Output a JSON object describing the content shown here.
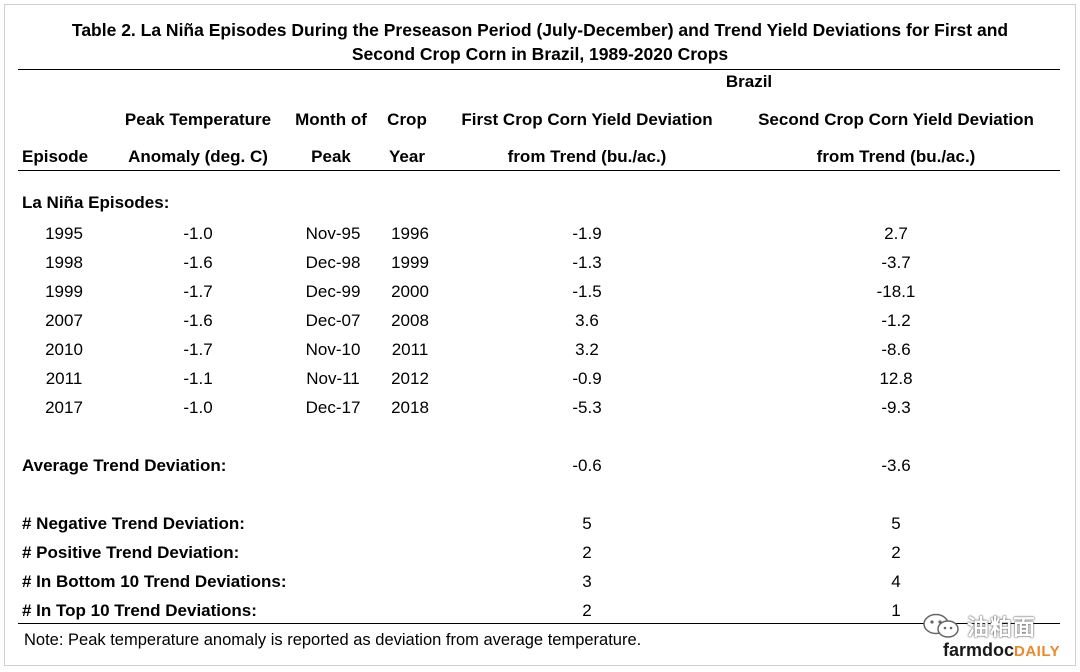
{
  "title": {
    "line1": "Table 2. La Niña Episodes During the Preseason Period (July-December) and Trend Yield Deviations for First and",
    "line2": "Second Crop Corn in Brazil, 1989-2020 Crops"
  },
  "header": {
    "group": "Brazil",
    "episode": "Episode",
    "peak_temp": [
      "Peak Temperature",
      "Anomaly (deg. C)"
    ],
    "month": [
      "Month of",
      "Peak"
    ],
    "crop_year": [
      "Crop",
      "Year"
    ],
    "first_crop": [
      "First Crop Corn Yield Deviation",
      "from Trend (bu./ac.)"
    ],
    "second_crop": [
      "Second Crop Corn Yield Deviation",
      "from Trend (bu./ac.)"
    ]
  },
  "section_label": "La Niña Episodes:",
  "rows": [
    {
      "episode": "1995",
      "anomaly": "-1.0",
      "month": "Nov-95",
      "year": "1996",
      "first": "-1.9",
      "second": "2.7"
    },
    {
      "episode": "1998",
      "anomaly": "-1.6",
      "month": "Dec-98",
      "year": "1999",
      "first": "-1.3",
      "second": "-3.7"
    },
    {
      "episode": "1999",
      "anomaly": "-1.7",
      "month": "Dec-99",
      "year": "2000",
      "first": "-1.5",
      "second": "-18.1"
    },
    {
      "episode": "2007",
      "anomaly": "-1.6",
      "month": "Dec-07",
      "year": "2008",
      "first": "3.6",
      "second": "-1.2"
    },
    {
      "episode": "2010",
      "anomaly": "-1.7",
      "month": "Nov-10",
      "year": "2011",
      "first": "3.2",
      "second": "-8.6"
    },
    {
      "episode": "2011",
      "anomaly": "-1.1",
      "month": "Nov-11",
      "year": "2012",
      "first": "-0.9",
      "second": "12.8"
    },
    {
      "episode": "2017",
      "anomaly": "-1.0",
      "month": "Dec-17",
      "year": "2018",
      "first": "-5.3",
      "second": "-9.3"
    }
  ],
  "average": {
    "label": "Average Trend Deviation:",
    "first": "-0.6",
    "second": "-3.6"
  },
  "summary": [
    {
      "label": "# Negative Trend Deviation:",
      "first": "5",
      "second": "5"
    },
    {
      "label": "# Positive Trend Deviation:",
      "first": "2",
      "second": "2"
    },
    {
      "label": "# In Bottom 10 Trend Deviations:",
      "first": "3",
      "second": "4"
    },
    {
      "label": "# In Top 10 Trend Deviations:",
      "first": "2",
      "second": "1"
    }
  ],
  "note": "Note: Peak temperature anomaly is reported as deviation from average temperature.",
  "watermark": {
    "text": "油粕面",
    "icon": "wechat-icon"
  },
  "logo": {
    "part1": "farmdoc",
    "part2": "DAILY"
  }
}
